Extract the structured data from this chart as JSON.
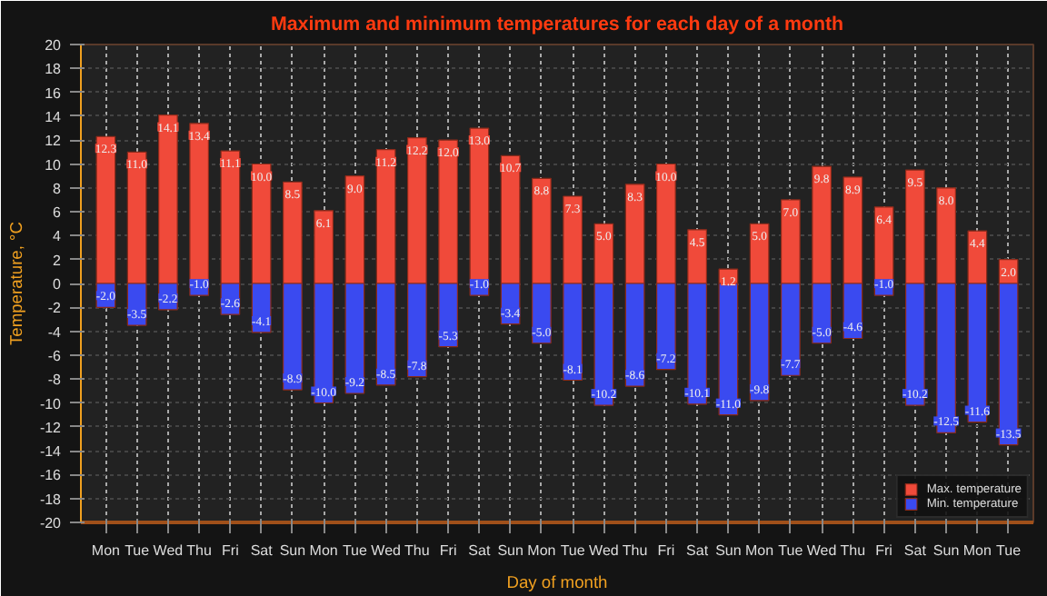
{
  "chart_data": {
    "type": "bar",
    "title": "Maximum and minimum temperatures for each day of a month",
    "xlabel": "Day of month",
    "ylabel": "Temperature, °C",
    "categories": [
      "Mon",
      "Tue",
      "Wed",
      "Thu",
      "Fri",
      "Sat",
      "Sun",
      "Mon",
      "Tue",
      "Wed",
      "Thu",
      "Fri",
      "Sat",
      "Sun",
      "Mon",
      "Tue",
      "Wed",
      "Thu",
      "Fri",
      "Sat",
      "Sun",
      "Mon",
      "Tue",
      "Wed",
      "Thu",
      "Fri",
      "Sat",
      "Sun",
      "Mon",
      "Tue"
    ],
    "stacked": true,
    "series": [
      {
        "name": "Max. temperature",
        "color": "#f04a3a",
        "values": [
          12.3,
          11.0,
          14.1,
          13.4,
          11.1,
          10.0,
          8.5,
          6.1,
          9.0,
          11.2,
          12.2,
          12.0,
          13.0,
          10.7,
          8.8,
          7.3,
          5.0,
          8.3,
          10.0,
          4.5,
          1.2,
          5.0,
          7.0,
          9.8,
          8.9,
          6.4,
          9.5,
          8.0,
          4.4,
          2.0
        ],
        "value_labels": [
          "12.3",
          "11.0",
          "14.1",
          "13.4",
          "11.1",
          "10.0",
          "8.5",
          "6.1",
          "9.0",
          "11.2",
          "12.2",
          "12.0",
          "13.0",
          "10.7",
          "8.8",
          "7.3",
          "5.0",
          "8.3",
          "10.0",
          "4.5",
          "1.2",
          "5.0",
          "7.0",
          "9.8",
          "8.9",
          "6.4",
          "9.5",
          "8.0",
          "4.4",
          "2.0"
        ]
      },
      {
        "name": "Min. temperature",
        "color": "#3a4af0",
        "values": [
          -2.0,
          -3.5,
          -2.2,
          -1.0,
          -2.6,
          -4.1,
          -8.9,
          -10.0,
          -9.2,
          -8.5,
          -7.8,
          -5.3,
          -1.0,
          -3.4,
          -5.0,
          -8.1,
          -10.2,
          -8.6,
          -7.2,
          -10.1,
          -11.0,
          -9.8,
          -7.7,
          -5.0,
          -4.6,
          -1.0,
          -10.2,
          -12.5,
          -11.6,
          -13.5
        ],
        "value_labels": [
          "-2.0",
          "-3.5",
          "-2.2",
          "-1.0",
          "-2.6",
          "-4.1",
          "-8.9",
          "-10.0",
          "-9.2",
          "-8.5",
          "-7.8",
          "-5.3",
          "-1.0",
          "-3.4",
          "-5.0",
          "-8.1",
          "-10.2",
          "-8.6",
          "-7.2",
          "-10.1",
          "-11.0",
          "-9.8",
          "-7.7",
          "-5.0",
          "-4.6",
          "-1.0",
          "-10.2",
          "-12.5",
          "-11.6",
          "-13.5"
        ]
      }
    ],
    "ylim": [
      -20,
      20
    ],
    "yticks": [
      -20,
      -18,
      -16,
      -14,
      -12,
      -10,
      -8,
      -6,
      -4,
      -2,
      0,
      2,
      4,
      6,
      8,
      10,
      12,
      14,
      16,
      18,
      20
    ],
    "grid": true,
    "legend": "bottom right"
  }
}
